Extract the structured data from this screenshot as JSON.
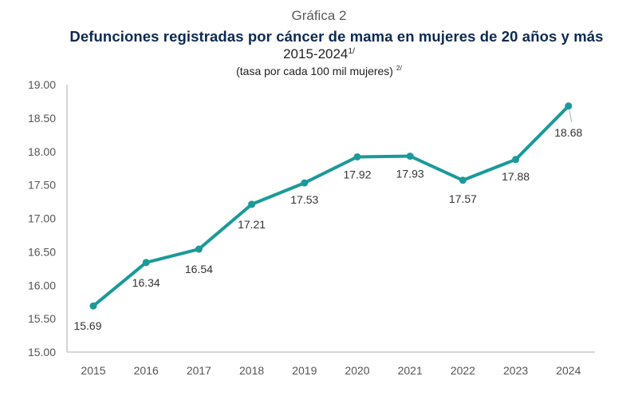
{
  "header": {
    "figure_label": "Gráfica 2",
    "title": "Defunciones registradas por cáncer de mama en mujeres de 20 años y más",
    "period": "2015-2024",
    "period_note": "1/",
    "units": "(tasa por cada 100 mil mujeres)",
    "units_note": "2/"
  },
  "colors": {
    "line": "#1a9a99",
    "title": "#0d2a52",
    "axis": "#c8c8c8"
  },
  "chart_data": {
    "type": "line",
    "title": "Defunciones registradas por cáncer de mama en mujeres de 20 años y más",
    "subtitle": "2015-2024 (tasa por cada 100 mil mujeres)",
    "xlabel": "",
    "ylabel": "",
    "categories": [
      "2015",
      "2016",
      "2017",
      "2018",
      "2019",
      "2020",
      "2021",
      "2022",
      "2023",
      "2024"
    ],
    "series": [
      {
        "name": "Tasa por cada 100 mil mujeres",
        "values": [
          15.69,
          16.34,
          16.54,
          17.21,
          17.53,
          17.92,
          17.93,
          17.57,
          17.88,
          18.68
        ],
        "data_labels": [
          "15.69",
          "16.34",
          "16.54",
          "17.21",
          "17.53",
          "17.92",
          "17.93",
          "17.57",
          "17.88",
          "18.68"
        ]
      }
    ],
    "ylim": [
      15.0,
      19.0
    ],
    "yticks": [
      "15.00",
      "15.50",
      "16.00",
      "16.50",
      "17.00",
      "17.50",
      "18.00",
      "18.50",
      "19.00"
    ],
    "grid": false,
    "legend": "none"
  }
}
